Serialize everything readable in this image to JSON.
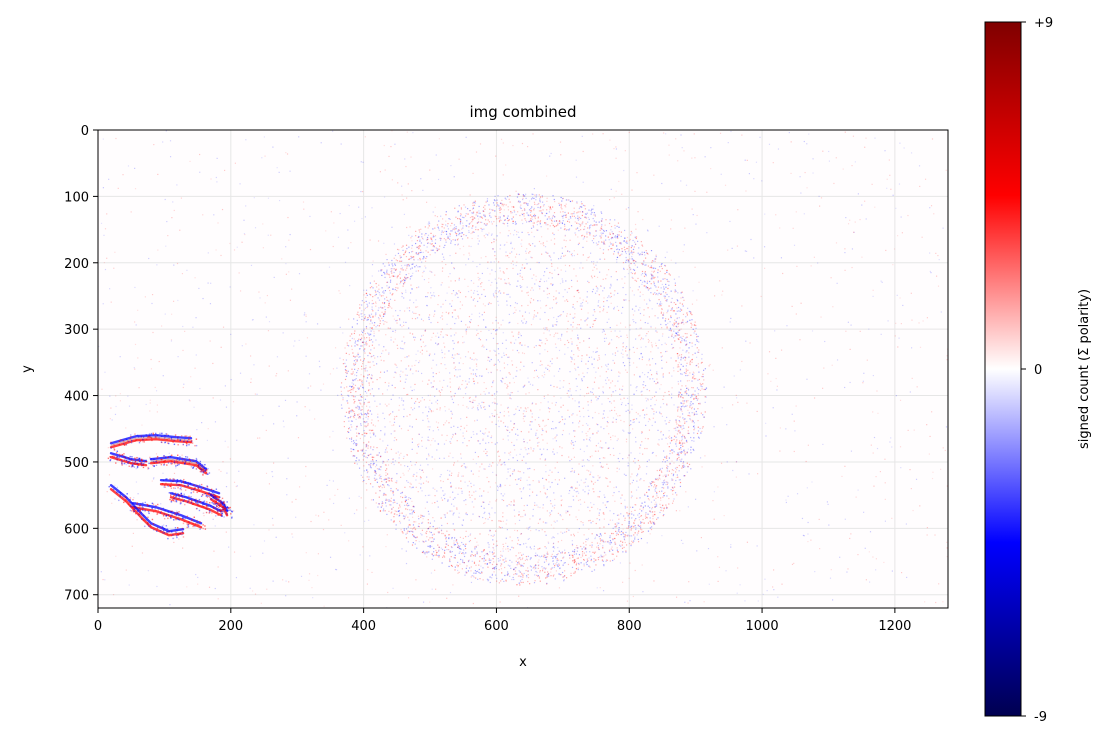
{
  "chart_data": {
    "type": "heatmap",
    "title": "img combined",
    "xlabel": "x",
    "ylabel": "y",
    "xlim": [
      0,
      1280
    ],
    "ylim": [
      720,
      0
    ],
    "xticks": [
      0,
      200,
      400,
      600,
      800,
      1000,
      1200
    ],
    "yticks": [
      0,
      100,
      200,
      300,
      400,
      500,
      600,
      700
    ],
    "grid": true,
    "colormap": "seismic",
    "colorbar": {
      "label": "signed count (Σ polarity)",
      "range": [
        -9,
        9
      ],
      "ticks": [
        {
          "value": 9,
          "label": "+9"
        },
        {
          "value": 0,
          "label": "0"
        },
        {
          "value": -9,
          "label": "-9"
        }
      ]
    },
    "colors": {
      "positive": "#ff0000",
      "negative": "#0000ff",
      "zero": "#ffffff",
      "pos_extreme": "#800000",
      "neg_extreme": "#000050"
    },
    "features": [
      {
        "name": "hand",
        "center": [
          110,
          520
        ],
        "color": "mixed"
      },
      {
        "name": "disc",
        "center": [
          640,
          390
        ],
        "radius_x": 270,
        "radius_y": 290,
        "color": "faint-mixed"
      }
    ]
  }
}
